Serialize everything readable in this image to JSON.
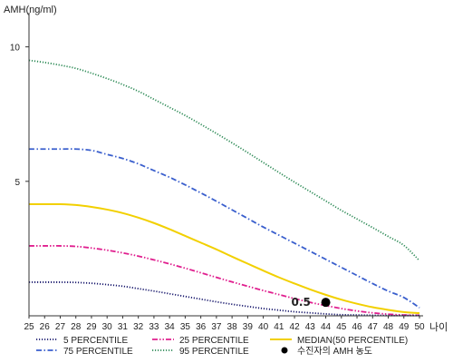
{
  "chart_data": {
    "type": "line",
    "ylabel": "AMH(ng/ml)",
    "xlabel": "나이",
    "x": [
      25,
      26,
      27,
      28,
      29,
      30,
      31,
      32,
      33,
      34,
      35,
      36,
      37,
      38,
      39,
      40,
      41,
      42,
      43,
      44,
      45,
      46,
      47,
      48,
      49,
      50
    ],
    "xlim": [
      25,
      50
    ],
    "ylim": [
      0,
      11
    ],
    "yticks": [
      5,
      10
    ],
    "grid": false,
    "series": [
      {
        "name": "95 PERCENTILE",
        "color": "#2e8b57",
        "dash": "dotted",
        "values": [
          9.5,
          9.42,
          9.32,
          9.2,
          9.02,
          8.82,
          8.6,
          8.35,
          8.05,
          7.75,
          7.45,
          7.12,
          6.78,
          6.43,
          6.07,
          5.7,
          5.33,
          4.97,
          4.62,
          4.27,
          3.92,
          3.6,
          3.28,
          2.95,
          2.62,
          2.05
        ]
      },
      {
        "name": "75 PERCENTILE",
        "color": "#3a5fcd",
        "dash": "dashdot",
        "values": [
          6.2,
          6.2,
          6.2,
          6.2,
          6.15,
          6.0,
          5.85,
          5.65,
          5.4,
          5.15,
          4.87,
          4.57,
          4.26,
          3.94,
          3.62,
          3.3,
          3.0,
          2.7,
          2.4,
          2.1,
          1.8,
          1.5,
          1.2,
          0.92,
          0.68,
          0.3
        ]
      },
      {
        "name": "MEDIAN(50 PERCENTILE)",
        "color": "#f2d000",
        "dash": "solid",
        "values": [
          4.15,
          4.15,
          4.15,
          4.12,
          4.05,
          3.95,
          3.82,
          3.65,
          3.45,
          3.22,
          2.97,
          2.72,
          2.47,
          2.2,
          1.94,
          1.68,
          1.43,
          1.2,
          0.98,
          0.78,
          0.6,
          0.45,
          0.32,
          0.22,
          0.14,
          0.1
        ]
      },
      {
        "name": "25 PERCENTILE",
        "color": "#e0208f",
        "dash": "dashdotdot",
        "values": [
          2.6,
          2.6,
          2.6,
          2.58,
          2.52,
          2.44,
          2.34,
          2.22,
          2.08,
          1.93,
          1.77,
          1.6,
          1.43,
          1.26,
          1.1,
          0.94,
          0.79,
          0.64,
          0.5,
          0.38,
          0.27,
          0.18,
          0.11,
          0.06,
          0.03,
          0.02
        ]
      },
      {
        "name": "5 PERCENTILE",
        "color": "#1a1a6e",
        "dash": "dotted",
        "values": [
          1.25,
          1.25,
          1.25,
          1.24,
          1.21,
          1.16,
          1.1,
          1.01,
          0.92,
          0.82,
          0.72,
          0.62,
          0.52,
          0.43,
          0.35,
          0.27,
          0.21,
          0.15,
          0.11,
          0.07,
          0.04,
          0.03,
          0.02,
          0.01,
          0.01,
          0.01
        ]
      }
    ],
    "points": [
      {
        "name": "수진자의 AMH 농도",
        "x": 44,
        "y": 0.5,
        "label": "0.5",
        "color": "#000000"
      }
    ],
    "legend_position": "bottom",
    "legend_order": [
      "5 PERCENTILE",
      "25 PERCENTILE",
      "MEDIAN(50 PERCENTILE)",
      "75 PERCENTILE",
      "95 PERCENTILE",
      "수진자의 AMH 농도"
    ]
  }
}
